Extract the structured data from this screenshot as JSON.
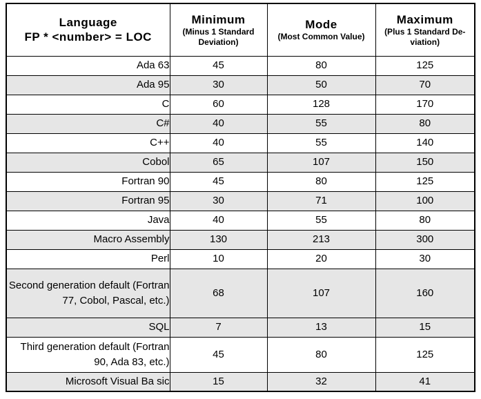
{
  "header": {
    "col1": {
      "title": "Language",
      "subtitle": "FP * <number> = LOC"
    },
    "col2": {
      "title": "Minimum",
      "subtitle": "(Minus 1 Standard Deviation)"
    },
    "col3": {
      "title": "Mode",
      "subtitle": "(Most Common Value)"
    },
    "col4": {
      "title": "Maximum",
      "subtitle": "(Plus 1 Standard De-viation)"
    }
  },
  "colors": {
    "row_shaded": "#e6e6e6",
    "border": "#000000",
    "text": "#000000"
  },
  "rows": [
    {
      "language": "Ada 63",
      "minimum": "45",
      "mode": "80",
      "maximum": "125"
    },
    {
      "language": "Ada 95",
      "minimum": "30",
      "mode": "50",
      "maximum": "70"
    },
    {
      "language": "C",
      "minimum": "60",
      "mode": "128",
      "maximum": "170"
    },
    {
      "language": "C#",
      "minimum": "40",
      "mode": "55",
      "maximum": "80"
    },
    {
      "language": "C++",
      "minimum": "40",
      "mode": "55",
      "maximum": "140"
    },
    {
      "language": "Cobol",
      "minimum": "65",
      "mode": "107",
      "maximum": "150"
    },
    {
      "language": "Fortran 90",
      "minimum": "45",
      "mode": "80",
      "maximum": "125"
    },
    {
      "language": "Fortran 95",
      "minimum": "30",
      "mode": "71",
      "maximum": "100"
    },
    {
      "language": "Java",
      "minimum": "40",
      "mode": "55",
      "maximum": "80"
    },
    {
      "language": "Macro Assembly",
      "minimum": "130",
      "mode": "213",
      "maximum": "300"
    },
    {
      "language": "Perl",
      "minimum": "10",
      "mode": "20",
      "maximum": "30"
    },
    {
      "language": "Second generation default (Fortran 77, Cobol, Pascal, etc.)",
      "minimum": "68",
      "mode": "107",
      "maximum": "160"
    },
    {
      "language": "SQL",
      "minimum": "7",
      "mode": "13",
      "maximum": "15"
    },
    {
      "language": "Third generation default (Fortran 90, Ada 83, etc.)",
      "minimum": "45",
      "mode": "80",
      "maximum": "125"
    },
    {
      "language": "Microsoft Visual Ba sic",
      "minimum": "15",
      "mode": "32",
      "maximum": "41"
    }
  ]
}
